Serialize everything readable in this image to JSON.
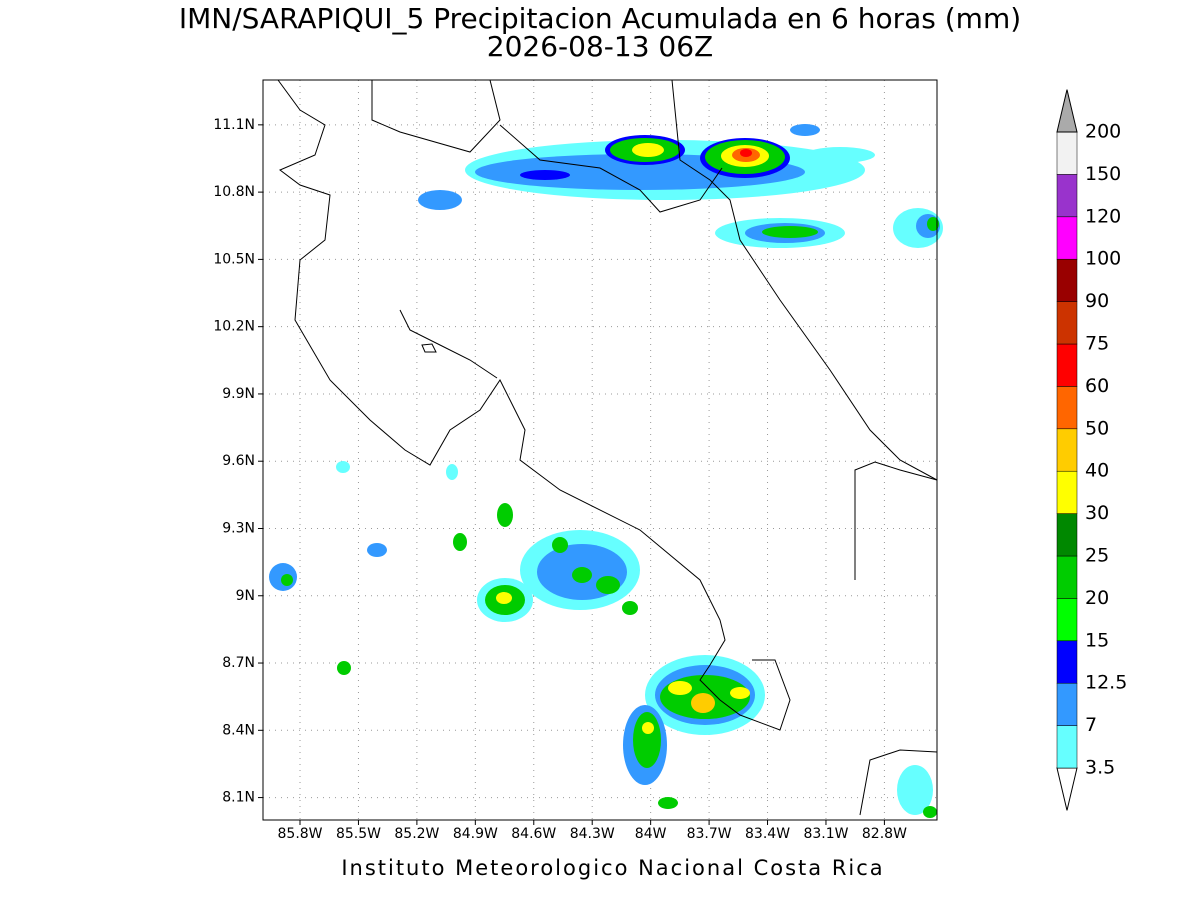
{
  "title": "IMN/SARAPIQUI_5 Precipitacion Acumulada en 6 horas (mm)",
  "subtitle": "2026-08-13 06Z",
  "map": {
    "lon_range": [
      -85.99,
      -82.53
    ],
    "lat_range": [
      8.0,
      11.3
    ],
    "lat_ticks": [
      {
        "value": 11.1,
        "label": "11.1N"
      },
      {
        "value": 10.8,
        "label": "10.8N"
      },
      {
        "value": 10.5,
        "label": "10.5N"
      },
      {
        "value": 10.2,
        "label": "10.2N"
      },
      {
        "value": 9.9,
        "label": "9.9N"
      },
      {
        "value": 9.6,
        "label": "9.6N"
      },
      {
        "value": 9.3,
        "label": "9.3N"
      },
      {
        "value": 9.0,
        "label": "9N"
      },
      {
        "value": 8.7,
        "label": "8.7N"
      },
      {
        "value": 8.4,
        "label": "8.4N"
      },
      {
        "value": 8.1,
        "label": "8.1N"
      }
    ],
    "lon_ticks": [
      {
        "value": -85.8,
        "label": "85.8W"
      },
      {
        "value": -85.5,
        "label": "85.5W"
      },
      {
        "value": -85.2,
        "label": "85.2W"
      },
      {
        "value": -84.9,
        "label": "84.9W"
      },
      {
        "value": -84.6,
        "label": "84.6W"
      },
      {
        "value": -84.3,
        "label": "84.3W"
      },
      {
        "value": -84.0,
        "label": "84W"
      },
      {
        "value": -83.7,
        "label": "83.7W"
      },
      {
        "value": -83.4,
        "label": "83.4W"
      },
      {
        "value": -83.1,
        "label": "83.1W"
      },
      {
        "value": -82.8,
        "label": "82.8W"
      }
    ]
  },
  "colorbar": {
    "levels": [
      3.5,
      7,
      12.5,
      15,
      20,
      25,
      30,
      40,
      50,
      60,
      75,
      90,
      100,
      120,
      150,
      200
    ],
    "colors": [
      "#ffffff",
      "#66ffff",
      "#3399ff",
      "#0000ff",
      "#00ff00",
      "#00cc00",
      "#008800",
      "#ffff00",
      "#ffcc00",
      "#ff6600",
      "#ff0000",
      "#cc3300",
      "#990000",
      "#ff00ff",
      "#9933cc",
      "#f2f2f2",
      "#aaaaaa"
    ]
  },
  "footer": "Instituto Meteorologico Nacional Costa Rica"
}
